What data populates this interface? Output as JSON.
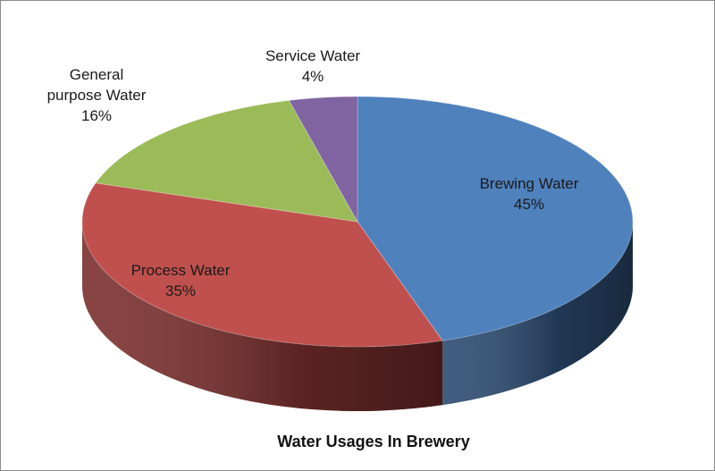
{
  "chart_data": {
    "type": "pie",
    "style": "3d",
    "title": "Water Usages In Brewery",
    "slices": [
      {
        "label": [
          "Brewing Water"
        ],
        "value": 45,
        "value_label": "45%",
        "color": "#4f81bd",
        "side_color": "#2c4b71"
      },
      {
        "label": [
          "Process Water"
        ],
        "value": 35,
        "value_label": "35%",
        "color": "#c0504d",
        "side_color": "#7a2f2d"
      },
      {
        "label": [
          "General",
          "purpose Water"
        ],
        "value": 16,
        "value_label": "16%",
        "color": "#9bbb59",
        "side_color": "#5f7a30"
      },
      {
        "label": [
          "Service Water"
        ],
        "value": 4,
        "value_label": "4%",
        "color": "#8064a2",
        "side_color": "#4e3a68"
      }
    ]
  }
}
